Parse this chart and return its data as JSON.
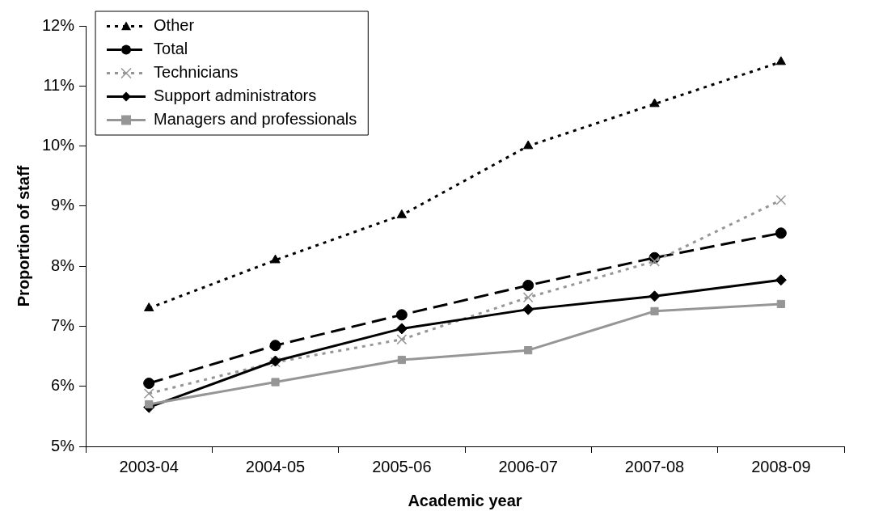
{
  "chart_data": {
    "type": "line",
    "xlabel": "Academic year",
    "ylabel": "Proportion of staff",
    "categories": [
      "2003-04",
      "2004-05",
      "2005-06",
      "2006-07",
      "2007-08",
      "2008-09"
    ],
    "ylim": [
      5,
      12
    ],
    "yticks": [
      {
        "value": 5,
        "label": "5%"
      },
      {
        "value": 6,
        "label": "6%"
      },
      {
        "value": 7,
        "label": "7%"
      },
      {
        "value": 8,
        "label": "8%"
      },
      {
        "value": 9,
        "label": "9%"
      },
      {
        "value": 10,
        "label": "10%"
      },
      {
        "value": 11,
        "label": "11%"
      },
      {
        "value": 12,
        "label": "12%"
      }
    ],
    "grid": false,
    "legend": "top left",
    "series": [
      {
        "name": "Other",
        "color": "#000000",
        "marker": "triangle",
        "line_style": "dotted",
        "values": [
          7.3,
          8.1,
          8.85,
          10.0,
          10.7,
          11.4
        ]
      },
      {
        "name": "Total",
        "color": "#000000",
        "marker": "circle",
        "line_style": "dashed",
        "values": [
          6.05,
          6.68,
          7.19,
          7.68,
          8.14,
          8.55
        ]
      },
      {
        "name": "Technicians",
        "color": "#969696",
        "marker": "cross",
        "line_style": "dotted",
        "values": [
          5.88,
          6.4,
          6.78,
          7.48,
          8.08,
          9.1
        ]
      },
      {
        "name": "Support administrators",
        "color": "#000000",
        "marker": "diamond",
        "line_style": "solid",
        "values": [
          5.65,
          6.42,
          6.96,
          7.28,
          7.5,
          7.77
        ]
      },
      {
        "name": "Managers and professionals",
        "color": "#969696",
        "marker": "square",
        "line_style": "solid",
        "values": [
          5.7,
          6.07,
          6.44,
          6.6,
          7.25,
          7.37
        ]
      }
    ]
  }
}
